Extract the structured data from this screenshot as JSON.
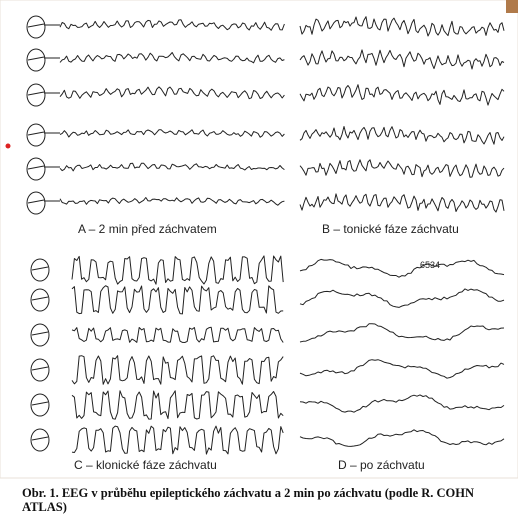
{
  "panels": [
    {
      "label": "A – 2 min před záchvatem"
    },
    {
      "label": "B – tonické fáze záchvatu"
    },
    {
      "label": "C – klonické fáze záchvatu"
    },
    {
      "label": "D – po záchvatu"
    }
  ],
  "annotation": "6534",
  "caption": "Obr. 1. EEG v průběhu epileptického záchvatu a 2 min po záchvatu (podle R. COHN ATLAS)"
}
